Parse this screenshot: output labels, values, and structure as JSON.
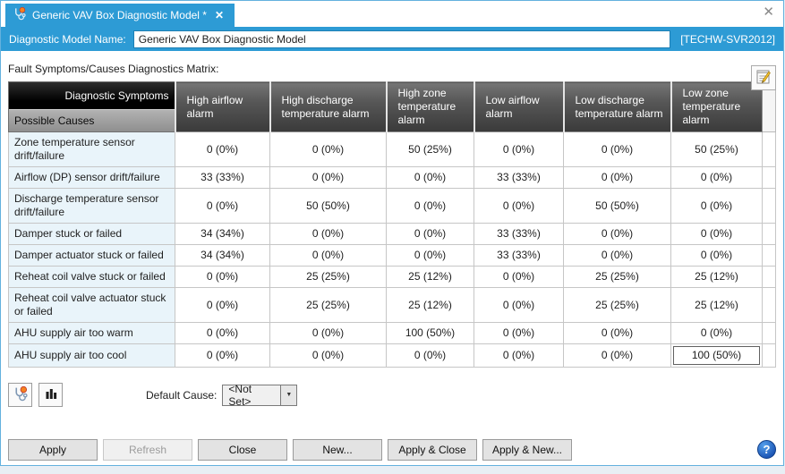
{
  "window": {
    "close_glyph": "✕"
  },
  "tab": {
    "title": "Generic VAV Box Diagnostic Model *",
    "close_glyph": "✕"
  },
  "name_bar": {
    "label": "Diagnostic Model Name:",
    "value": "Generic VAV Box Diagnostic Model",
    "server": "[TECHW-SVR2012]"
  },
  "matrix": {
    "label": "Fault Symptoms/Causes Diagnostics Matrix:",
    "corner": {
      "top": "Diagnostic Symptoms",
      "bottom": "Possible Causes"
    },
    "columns": [
      "High airflow alarm",
      "High discharge temperature alarm",
      "High zone temperature alarm",
      "Low airflow alarm",
      "Low discharge temperature alarm",
      "Low zone temperature alarm"
    ],
    "rows": [
      {
        "cause": "Zone temperature sensor drift/failure",
        "values": [
          "0 (0%)",
          "0 (0%)",
          "50 (25%)",
          "0 (0%)",
          "0 (0%)",
          "50 (25%)"
        ]
      },
      {
        "cause": "Airflow (DP) sensor drift/failure",
        "values": [
          "33 (33%)",
          "0 (0%)",
          "0 (0%)",
          "33 (33%)",
          "0 (0%)",
          "0 (0%)"
        ]
      },
      {
        "cause": "Discharge temperature sensor drift/failure",
        "values": [
          "0 (0%)",
          "50 (50%)",
          "0 (0%)",
          "0 (0%)",
          "50 (50%)",
          "0 (0%)"
        ]
      },
      {
        "cause": "Damper stuck or failed",
        "values": [
          "34 (34%)",
          "0 (0%)",
          "0 (0%)",
          "33 (33%)",
          "0 (0%)",
          "0 (0%)"
        ]
      },
      {
        "cause": "Damper actuator stuck or failed",
        "values": [
          "34 (34%)",
          "0 (0%)",
          "0 (0%)",
          "33 (33%)",
          "0 (0%)",
          "0 (0%)"
        ]
      },
      {
        "cause": "Reheat coil valve stuck or failed",
        "values": [
          "0 (0%)",
          "25 (25%)",
          "25 (12%)",
          "0 (0%)",
          "25 (25%)",
          "25 (12%)"
        ]
      },
      {
        "cause": "Reheat coil valve actuator stuck or failed",
        "values": [
          "0 (0%)",
          "25 (25%)",
          "25 (12%)",
          "0 (0%)",
          "25 (25%)",
          "25 (12%)"
        ]
      },
      {
        "cause": "AHU supply air too warm",
        "values": [
          "0 (0%)",
          "0 (0%)",
          "100 (50%)",
          "0 (0%)",
          "0 (0%)",
          "0 (0%)"
        ]
      },
      {
        "cause": "AHU supply air too cool",
        "values": [
          "0 (0%)",
          "0 (0%)",
          "0 (0%)",
          "0 (0%)",
          "0 (0%)",
          "100 (50%)"
        ]
      }
    ],
    "selected_cell": {
      "row": 8,
      "col": 5
    }
  },
  "footer": {
    "default_cause_label": "Default Cause:",
    "default_cause_value": "<Not Set>",
    "combo_arrow_glyph": "▼"
  },
  "buttons": [
    {
      "label": "Apply",
      "disabled": false
    },
    {
      "label": "Refresh",
      "disabled": true
    },
    {
      "label": "Close",
      "disabled": false
    },
    {
      "label": "New...",
      "disabled": false
    },
    {
      "label": "Apply & Close",
      "disabled": false
    },
    {
      "label": "Apply & New...",
      "disabled": false
    }
  ],
  "help": {
    "glyph": "?"
  },
  "colors": {
    "accent_blue": "#2d9bd5",
    "header_dark": "#3a3a3a",
    "cause_cell_bg": "#e9f4fa",
    "alarm_orange": "#f58220",
    "help_blue": "#1c55b4"
  }
}
